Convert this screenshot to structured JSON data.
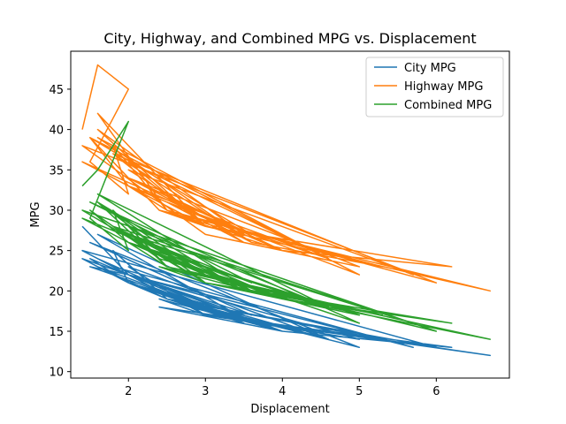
{
  "chart_data": {
    "type": "line",
    "title": "City, Highway, and Combined MPG vs. Displacement",
    "xlabel": "Displacement",
    "ylabel": "MPG",
    "xlim": [
      1.25,
      6.95
    ],
    "ylim": [
      9.2,
      49.7
    ],
    "xticks": [
      2,
      3,
      4,
      5,
      6
    ],
    "yticks": [
      10,
      15,
      20,
      25,
      30,
      35,
      40,
      45
    ],
    "grid": false,
    "legend_position": "top-right",
    "series": [
      {
        "name": "City MPG",
        "color": "#1f77b4",
        "x": [
          1.4,
          1.6,
          2.0,
          1.5,
          2.0,
          1.8,
          2.5,
          1.6,
          3.0,
          2.0,
          1.5,
          2.4,
          3.5,
          1.4,
          2.0,
          2.5,
          3.0,
          1.8,
          3.6,
          2.0,
          4.0,
          2.4,
          3.0,
          1.6,
          3.5,
          2.0,
          4.6,
          3.0,
          2.5,
          5.0,
          1.5,
          3.6,
          2.0,
          4.0,
          2.4,
          6.7,
          3.0,
          1.8,
          5.7,
          2.0,
          3.5,
          2.5,
          4.0,
          6.2,
          3.0,
          2.0,
          4.6,
          1.6,
          3.6,
          5.3,
          2.5,
          6.0,
          1.4,
          3.0,
          5.0,
          2.0
        ],
        "y": [
          28,
          26,
          22,
          24,
          21,
          25,
          19,
          23,
          18,
          22,
          23,
          20,
          17,
          24,
          21,
          19,
          18,
          22,
          16,
          21,
          15,
          19,
          17,
          24,
          16,
          21,
          14,
          18,
          19,
          13,
          26,
          17,
          22,
          15,
          18,
          12,
          17,
          23,
          13,
          22,
          16,
          19,
          15,
          13,
          17,
          23,
          14,
          27,
          16,
          14,
          19,
          13,
          25,
          17,
          14,
          22
        ]
      },
      {
        "name": "Highway MPG",
        "color": "#ff7f0e",
        "x": [
          1.4,
          1.6,
          2.0,
          1.5,
          2.0,
          1.8,
          2.5,
          1.6,
          3.0,
          2.0,
          1.5,
          2.4,
          3.5,
          1.4,
          2.0,
          2.5,
          3.0,
          1.8,
          3.6,
          2.0,
          4.0,
          2.4,
          3.0,
          1.6,
          3.5,
          2.0,
          4.6,
          3.0,
          2.5,
          5.0,
          1.5,
          3.6,
          2.0,
          4.0,
          2.4,
          6.7,
          3.0,
          1.8,
          5.7,
          2.0,
          3.5,
          2.5,
          4.0,
          6.2,
          3.0,
          2.0,
          4.6,
          1.6,
          3.6,
          5.3,
          2.5,
          6.0,
          1.4,
          3.0,
          5.0,
          2.0
        ],
        "y": [
          40,
          48,
          45,
          36,
          32,
          38,
          30,
          42,
          28,
          33,
          39,
          30,
          27,
          36,
          33,
          30,
          28,
          37,
          26,
          34,
          25,
          30,
          28,
          40,
          27,
          33,
          24,
          29,
          31,
          22,
          39,
          27,
          34,
          25,
          30,
          20,
          28,
          37,
          22,
          35,
          26,
          31,
          25,
          23,
          28,
          36,
          24,
          39,
          26,
          23,
          30,
          21,
          38,
          27,
          23,
          34
        ]
      },
      {
        "name": "Combined MPG",
        "color": "#2ca02c",
        "x": [
          1.4,
          1.6,
          2.0,
          1.5,
          2.0,
          1.8,
          2.5,
          1.6,
          3.0,
          2.0,
          1.5,
          2.4,
          3.5,
          1.4,
          2.0,
          2.5,
          3.0,
          1.8,
          3.6,
          2.0,
          4.0,
          2.4,
          3.0,
          1.6,
          3.5,
          2.0,
          4.6,
          3.0,
          2.5,
          5.0,
          1.5,
          3.6,
          2.0,
          4.0,
          2.4,
          6.7,
          3.0,
          1.8,
          5.7,
          2.0,
          3.5,
          2.5,
          4.0,
          6.2,
          3.0,
          2.0,
          4.6,
          1.6,
          3.6,
          5.3,
          2.5,
          6.0,
          1.4,
          3.0,
          5.0,
          2.0
        ],
        "y": [
          33,
          35,
          41,
          29,
          25,
          30,
          23,
          31,
          22,
          26,
          30,
          24,
          21,
          29,
          26,
          23,
          22,
          28,
          20,
          26,
          19,
          23,
          21,
          31,
          20,
          26,
          18,
          22,
          24,
          16,
          31,
          21,
          27,
          19,
          23,
          14,
          21,
          28,
          16,
          27,
          20,
          24,
          19,
          16,
          21,
          28,
          18,
          32,
          20,
          17,
          23,
          15,
          30,
          21,
          17,
          26
        ]
      }
    ]
  }
}
